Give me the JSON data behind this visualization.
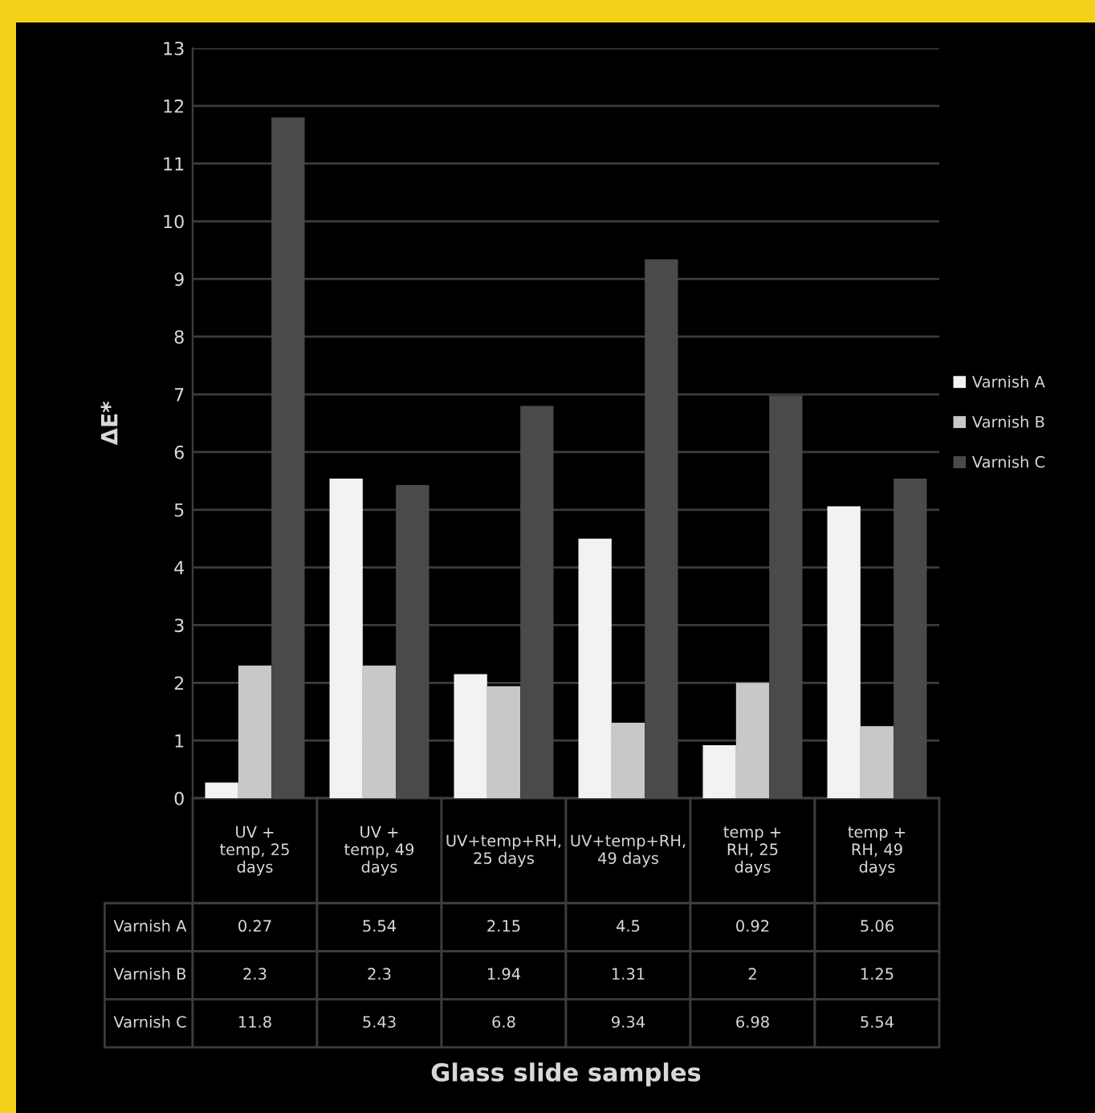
{
  "chart_data": {
    "type": "bar",
    "annotations": [
      "Glass slide samples"
    ],
    "ylabel": "ΔE*",
    "categories": [
      "UV + temp, 25 days",
      "UV + temp, 49 days",
      "UV+temp+RH, 25 days",
      "UV+temp+RH, 49 days",
      "temp + RH, 25 days",
      "temp + RH, 49 days"
    ],
    "series": [
      {
        "name": "Varnish A",
        "color": "#f2f2f2",
        "values": [
          0.27,
          5.54,
          2.15,
          4.5,
          0.92,
          5.06
        ]
      },
      {
        "name": "Varnish B",
        "color": "#c8c8c8",
        "values": [
          2.3,
          2.3,
          1.94,
          1.31,
          2,
          1.25
        ]
      },
      {
        "name": "Varnish C",
        "color": "#4a4a4a",
        "values": [
          11.8,
          5.43,
          6.8,
          9.34,
          6.98,
          5.54
        ]
      }
    ],
    "ylim": [
      0,
      13
    ],
    "yticks": [
      0,
      1,
      2,
      3,
      4,
      5,
      6,
      7,
      8,
      9,
      10,
      11,
      12,
      13
    ],
    "grid": "y",
    "legend": "right",
    "data_labels": true
  }
}
